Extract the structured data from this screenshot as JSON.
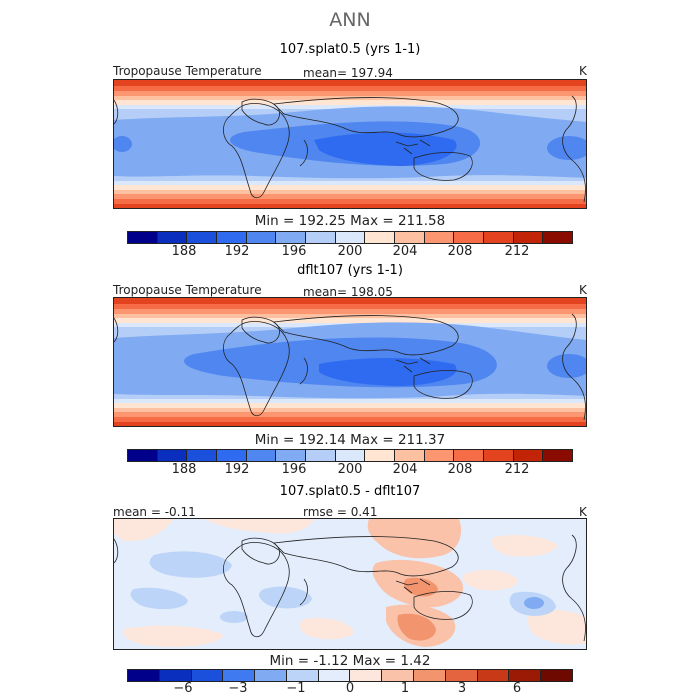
{
  "figure_title": "ANN",
  "colors": {
    "temp_scale": [
      "#00008b",
      "#0a2ebd",
      "#1a50dc",
      "#2e6bf0",
      "#4f86f0",
      "#80aaf2",
      "#b4cef7",
      "#dbe7fb",
      "#ffe5d2",
      "#fdc1a2",
      "#fb9670",
      "#f56c46",
      "#e3431f",
      "#c22408",
      "#8a0c00"
    ],
    "diff_scale": [
      "#00008b",
      "#0a2ebd",
      "#1a50dc",
      "#3f7af0",
      "#80aaf2",
      "#bcd4f7",
      "#e3edfc",
      "#fde7dc",
      "#f9c2a9",
      "#f2956f",
      "#e3643e",
      "#c83a17",
      "#9b1a05",
      "#6e0900"
    ]
  },
  "panels": [
    {
      "title": "107.splat0.5 (yrs 1-1)",
      "left_label": "Tropopause Temperature",
      "center_label": "mean= 197.94",
      "right_label": "K",
      "minmax": "Min = 192.25  Max = 211.58",
      "colorbar_ticks": [
        "188",
        "192",
        "196",
        "200",
        "204",
        "208",
        "212"
      ]
    },
    {
      "title": "dflt107 (yrs 1-1)",
      "left_label": "Tropopause Temperature",
      "center_label": "mean= 198.05",
      "right_label": "K",
      "minmax": "Min = 192.14  Max = 211.37",
      "colorbar_ticks": [
        "188",
        "192",
        "196",
        "200",
        "204",
        "208",
        "212"
      ]
    },
    {
      "title": "107.splat0.5 - dflt107",
      "left_label": "mean =  -0.11",
      "center_label": "rmse =   0.41",
      "right_label": "K",
      "minmax": "Min =  -1.12  Max =   1.42",
      "colorbar_ticks": [
        "−6",
        "−3",
        "−1",
        "0",
        "1",
        "3",
        "6"
      ]
    }
  ],
  "chart_data": [
    {
      "type": "heatmap",
      "title": "107.splat0.5 (yrs 1-1)",
      "variable": "Tropopause Temperature",
      "units": "K",
      "mean": 197.94,
      "min": 192.25,
      "max": 211.58,
      "contour_levels": [
        186,
        188,
        190,
        192,
        194,
        196,
        198,
        200,
        202,
        204,
        206,
        208,
        210,
        212,
        214
      ],
      "colorbar_labels": [
        188,
        192,
        196,
        200,
        204,
        208,
        212
      ]
    },
    {
      "type": "heatmap",
      "title": "dflt107 (yrs 1-1)",
      "variable": "Tropopause Temperature",
      "units": "K",
      "mean": 198.05,
      "min": 192.14,
      "max": 211.37,
      "contour_levels": [
        186,
        188,
        190,
        192,
        194,
        196,
        198,
        200,
        202,
        204,
        206,
        208,
        210,
        212,
        214
      ],
      "colorbar_labels": [
        188,
        192,
        196,
        200,
        204,
        208,
        212
      ]
    },
    {
      "type": "heatmap",
      "title": "107.splat0.5 - dflt107",
      "units": "K",
      "mean": -0.11,
      "rmse": 0.41,
      "min": -1.12,
      "max": 1.42,
      "colorbar_labels": [
        -6,
        -3,
        -1,
        0,
        1,
        3,
        6
      ]
    }
  ]
}
